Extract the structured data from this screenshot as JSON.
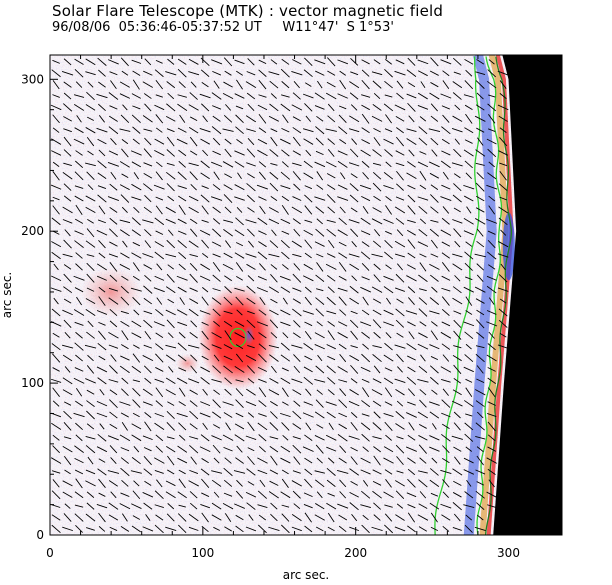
{
  "header": {
    "title": "Solar Flare Telescope (MTK) : vector magnetic field",
    "date_time": "96/08/06  05:36:46-05:37:52 UT",
    "position": "W11°47'  S 1°53'"
  },
  "colors": {
    "positive_polarity": "#e83030",
    "negative_polarity": "#3050e0",
    "limb_contour": "#30d030",
    "off_disk": "#000000",
    "vectors": "#000000"
  },
  "chart_data": {
    "type": "heatmap",
    "xlabel": "arc sec.",
    "ylabel": "arc sec.",
    "xlim": [
      0,
      335
    ],
    "ylim": [
      0,
      316
    ],
    "x_ticks": [
      0,
      100,
      200,
      300
    ],
    "y_ticks": [
      0,
      100,
      200,
      300
    ],
    "x_tick_labels": [
      "0",
      "100",
      "200",
      "300"
    ],
    "y_tick_labels": [
      "0",
      "100",
      "200",
      "300"
    ],
    "overlay": "transverse field vectors",
    "features": [
      {
        "polarity": "positive",
        "x": 123,
        "y": 130
      },
      {
        "polarity": "positive",
        "x": 40,
        "y": 160
      },
      {
        "polarity": "positive",
        "x": 90,
        "y": 113
      }
    ],
    "limb_x_at_y": [
      [
        0,
        290
      ],
      [
        100,
        297
      ],
      [
        200,
        305
      ],
      [
        300,
        300
      ],
      [
        316,
        296
      ]
    ]
  }
}
